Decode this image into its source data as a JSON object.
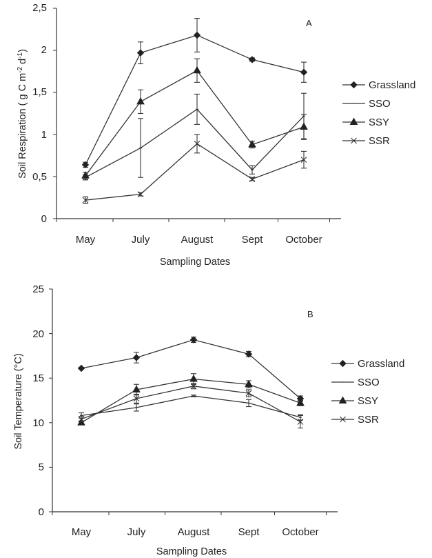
{
  "chart_data": [
    {
      "type": "line",
      "panel": "A",
      "title": "",
      "xlabel": "Sampling Dates",
      "ylabel_parts": [
        "Soil Respiration ( g C m",
        "-2",
        " d",
        "-1",
        ")"
      ],
      "categories": [
        "May",
        "July",
        "August",
        "Sept",
        "October"
      ],
      "ylim": [
        0,
        2.5
      ],
      "yticks": [
        "0",
        "0,5",
        "1",
        "1,5",
        "2",
        "2,5"
      ],
      "series": [
        {
          "name": "Grassland",
          "marker": "diamond",
          "values": [
            0.64,
            1.97,
            2.18,
            1.89,
            1.74
          ],
          "errors": [
            0.03,
            0.13,
            0.2,
            0.02,
            0.12
          ]
        },
        {
          "name": "SSO",
          "marker": "dash",
          "values": [
            0.49,
            0.84,
            1.3,
            0.58,
            1.22
          ],
          "errors": [
            0.03,
            0.35,
            0.18,
            0.05,
            0.27
          ]
        },
        {
          "name": "SSY",
          "marker": "triangle",
          "values": [
            0.51,
            1.39,
            1.76,
            0.88,
            1.09
          ],
          "errors": [
            0.04,
            0.14,
            0.14,
            0.04,
            0.15
          ]
        },
        {
          "name": "SSR",
          "marker": "cross",
          "values": [
            0.22,
            0.29,
            0.89,
            0.47,
            0.7
          ],
          "errors": [
            0.04,
            0.02,
            0.11,
            0.02,
            0.1
          ]
        }
      ],
      "grid": false,
      "legend": "right"
    },
    {
      "type": "line",
      "panel": "B",
      "title": "",
      "xlabel": "Sampling Dates",
      "ylabel": "Soil Temperature (°C)",
      "categories": [
        "May",
        "July",
        "August",
        "Sept",
        "October"
      ],
      "ylim": [
        0,
        25
      ],
      "yticks": [
        "0",
        "5",
        "10",
        "15",
        "20",
        "25"
      ],
      "series": [
        {
          "name": "Grassland",
          "marker": "diamond",
          "values": [
            16.1,
            17.3,
            19.3,
            17.7,
            12.7
          ],
          "errors": [
            0.1,
            0.6,
            0.3,
            0.3,
            0.3
          ]
        },
        {
          "name": "SSO",
          "marker": "dash",
          "values": [
            10.8,
            11.7,
            13.0,
            12.2,
            10.6
          ],
          "errors": [
            0.3,
            0.4,
            0.1,
            0.4,
            0.3
          ]
        },
        {
          "name": "SSY",
          "marker": "triangle",
          "values": [
            10.0,
            13.7,
            14.9,
            14.3,
            12.2
          ],
          "errors": [
            0.2,
            0.6,
            0.6,
            0.4,
            0.3
          ]
        },
        {
          "name": "SSR",
          "marker": "cross",
          "values": [
            10.4,
            12.7,
            14.1,
            13.3,
            10.1
          ],
          "errors": [
            0.3,
            0.5,
            0.3,
            0.4,
            0.7
          ]
        }
      ],
      "grid": false,
      "legend": "right"
    }
  ]
}
